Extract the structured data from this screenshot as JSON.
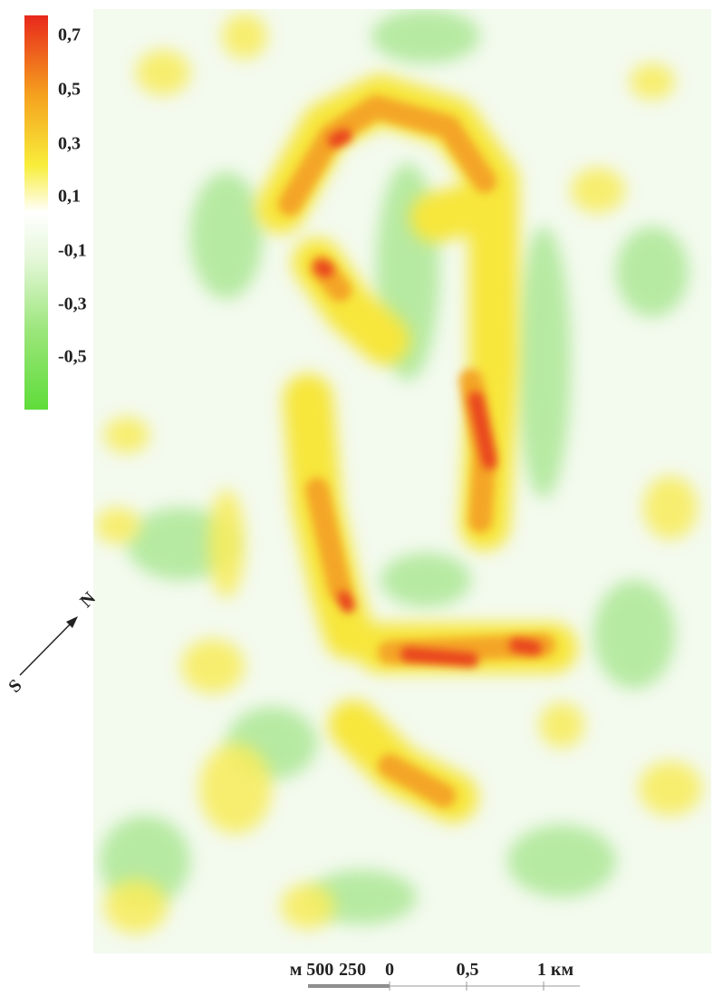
{
  "legend": {
    "labels": [
      "0,7",
      "0,5",
      "0,3",
      "0,1",
      "-0,1",
      "-0,3",
      "-0,5"
    ]
  },
  "compass": {
    "north": "N",
    "south": "S"
  },
  "scale_bar": {
    "labels": [
      "м 500",
      "250",
      "0",
      "0,5",
      "1 км"
    ]
  }
}
